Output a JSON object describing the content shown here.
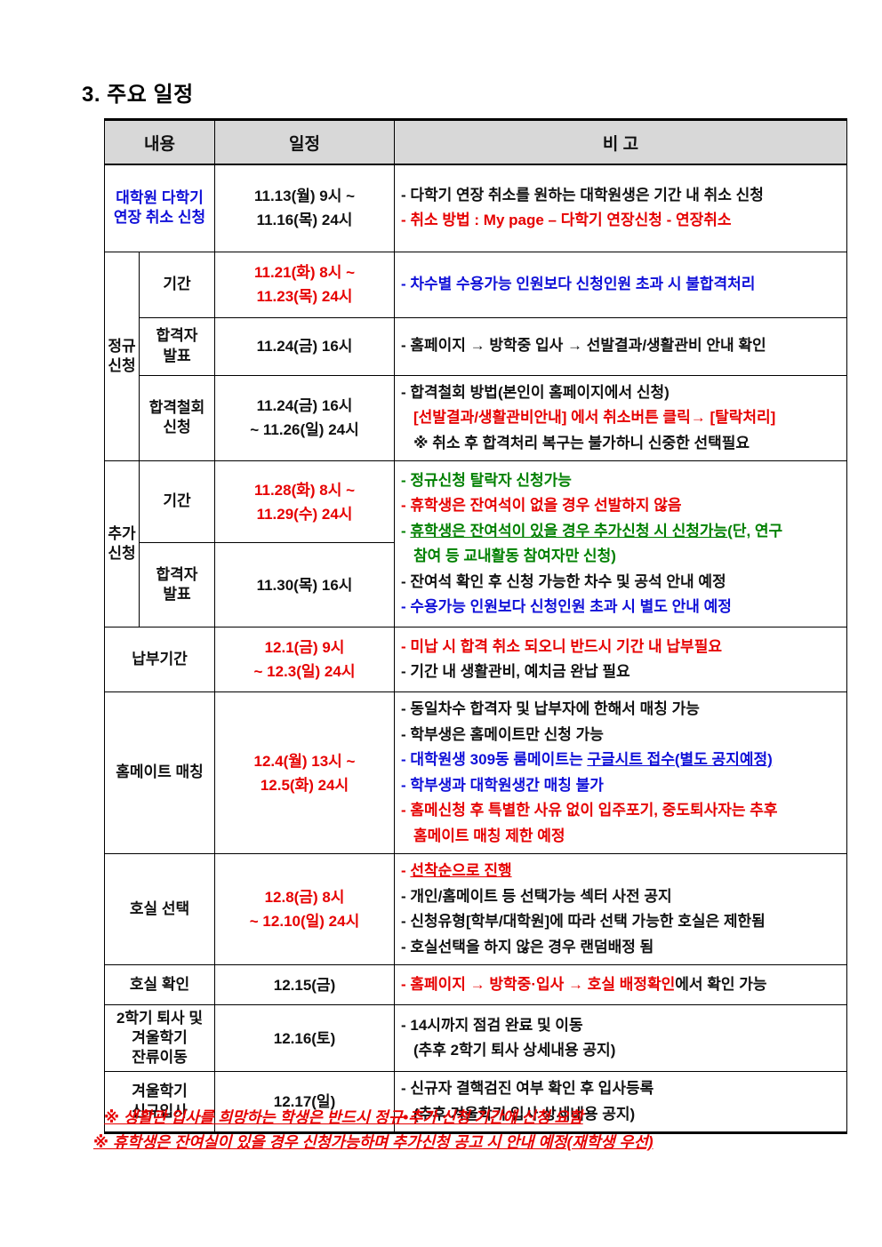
{
  "page": {
    "title": "3. 주요 일정"
  },
  "colors": {
    "k": "#111111",
    "r": "#e60000",
    "b": "#0f0fd8",
    "g": "#008000",
    "header_bg": "#d8d8d8"
  },
  "table": {
    "headers": {
      "content": "내용",
      "schedule": "일정",
      "note": "비 고"
    },
    "rows": [
      {
        "name": "grad-multisemester-cancel",
        "label": "대학원 다학기\n연장 취소 신청",
        "label_color": "b",
        "label_colspan": 2,
        "schedule": {
          "lines": [
            "11.13(월) 9시 ~",
            "11.16(목) 24시"
          ],
          "color": "k"
        },
        "note": {
          "rowspan": 1,
          "lines": [
            {
              "segs": [
                {
                  "t": "- 다학기 연장 취소를 원하는 대학원생은 기간 내 취소 신청",
                  "c": "k"
                }
              ]
            },
            {
              "segs": [
                {
                  "t": "- ",
                  "c": "r"
                },
                {
                  "t": "취소 방법 : My page – 다학기 연장신청 - 연장취소",
                  "c": "r"
                }
              ]
            }
          ]
        }
      },
      {
        "name": "regular-period",
        "group": {
          "label": "정규\n신청",
          "rowspan": 3
        },
        "label": "기간",
        "label_color": "k",
        "label_colspan": 1,
        "schedule": {
          "lines": [
            "11.21(화) 8시 ~",
            "11.23(목) 24시"
          ],
          "color": "r"
        },
        "note": {
          "rowspan": 1,
          "lines": [
            {
              "segs": [
                {
                  "t": "- ",
                  "c": "b"
                },
                {
                  "t": "차수별 수용가능 인원보다 신청인원 초과 시 불합격처리",
                  "c": "b"
                }
              ]
            }
          ]
        }
      },
      {
        "name": "regular-result",
        "label": "합격자\n발표",
        "label_color": "k",
        "label_colspan": 1,
        "schedule": {
          "lines": [
            "11.24(금) 16시"
          ],
          "color": "k"
        },
        "note": {
          "rowspan": 1,
          "lines": [
            {
              "segs": [
                {
                  "t": "- 홈페이지 → 방학중 입사 → 선발결과/생활관비 안내 확인",
                  "c": "k"
                }
              ]
            }
          ]
        }
      },
      {
        "name": "regular-withdraw",
        "label": "합격철회\n신청",
        "label_color": "k",
        "label_colspan": 1,
        "schedule": {
          "lines": [
            "11.24(금) 16시",
            "~ 11.26(일) 24시"
          ],
          "color": "k"
        },
        "note": {
          "rowspan": 1,
          "lines": [
            {
              "segs": [
                {
                  "t": "- 합격철회 방법(본인이 홈페이지에서 신청)",
                  "c": "k"
                }
              ]
            },
            {
              "ind": true,
              "segs": [
                {
                  "t": "[선발결과/생활관비안내] 에서 취소버튼 클릭→ [탈락처리]",
                  "c": "r"
                }
              ]
            },
            {
              "ind": true,
              "segs": [
                {
                  "t": "※ 취소 후 합격처리 복구는 불가하니 신중한 선택필요",
                  "c": "k"
                }
              ]
            }
          ]
        }
      },
      {
        "name": "extra-period",
        "group": {
          "label": "추가\n신청",
          "rowspan": 2
        },
        "label": "기간",
        "label_color": "k",
        "label_colspan": 1,
        "schedule": {
          "lines": [
            "11.28(화) 8시 ~",
            "11.29(수) 24시"
          ],
          "color": "r"
        },
        "note": {
          "rowspan": 2,
          "lines": [
            {
              "segs": [
                {
                  "t": "- ",
                  "c": "g"
                },
                {
                  "t": "정규신청 탈락자 신청가능",
                  "c": "g"
                }
              ]
            },
            {
              "segs": [
                {
                  "t": "- ",
                  "c": "r"
                },
                {
                  "t": "휴학생은 잔여석이 없을 경우 선발하지 않음",
                  "c": "r"
                }
              ]
            },
            {
              "segs": [
                {
                  "t": "- ",
                  "c": "g"
                },
                {
                  "t": "휴학생은 잔여석이 있을 경우 추가신청 시 신청가능",
                  "c": "g",
                  "u": true
                },
                {
                  "t": "(단, 연구",
                  "c": "g"
                }
              ]
            },
            {
              "ind": true,
              "segs": [
                {
                  "t": "참여 등 교내활동 참여자만 신청)",
                  "c": "g"
                }
              ]
            },
            {
              "segs": [
                {
                  "t": "- 잔여석 확인 후 신청 가능한 차수 및 공석 안내 예정",
                  "c": "k"
                }
              ]
            },
            {
              "segs": [
                {
                  "t": "- ",
                  "c": "b"
                },
                {
                  "t": "수용가능 인원보다 신청인원 초과 시 별도 안내 예정",
                  "c": "b"
                }
              ]
            }
          ]
        }
      },
      {
        "name": "extra-result",
        "label": "합격자\n발표",
        "label_color": "k",
        "label_colspan": 1,
        "schedule": {
          "lines": [
            "11.30(목) 16시"
          ],
          "color": "k"
        },
        "note": null
      },
      {
        "name": "payment-period",
        "label": "납부기간",
        "label_color": "k",
        "label_colspan": 2,
        "schedule": {
          "lines": [
            "12.1(금) 9시",
            "~ 12.3(일) 24시"
          ],
          "color": "r"
        },
        "note": {
          "rowspan": 1,
          "lines": [
            {
              "segs": [
                {
                  "t": "- ",
                  "c": "r"
                },
                {
                  "t": "미납 시 합격 취소 되오니 반드시 기간 내 납부필요",
                  "c": "r"
                }
              ]
            },
            {
              "segs": [
                {
                  "t": "- 기간 내 생활관비, 예치금 완납 필요",
                  "c": "k"
                }
              ]
            }
          ]
        }
      },
      {
        "name": "homemate-matching",
        "label": "홈메이트 매칭",
        "label_color": "k",
        "label_colspan": 2,
        "schedule": {
          "lines": [
            "12.4(월) 13시 ~",
            "12.5(화) 24시"
          ],
          "color": "r"
        },
        "note": {
          "rowspan": 1,
          "lines": [
            {
              "segs": [
                {
                  "t": "- 동일차수 합격자 및 납부자에 한해서 매칭 가능",
                  "c": "k"
                }
              ]
            },
            {
              "segs": [
                {
                  "t": "- 학부생은 홈메이트만 신청 가능",
                  "c": "k"
                }
              ]
            },
            {
              "segs": [
                {
                  "t": "- ",
                  "c": "b"
                },
                {
                  "t": "대학원생 309동 룸메이트는 ",
                  "c": "b"
                },
                {
                  "t": "구글시트 접수(별도 공지예정)",
                  "c": "b",
                  "u": true
                }
              ]
            },
            {
              "segs": [
                {
                  "t": "- ",
                  "c": "b"
                },
                {
                  "t": "학부생과 대학원생간 매칭 불가",
                  "c": "b"
                }
              ]
            },
            {
              "segs": [
                {
                  "t": "- ",
                  "c": "r"
                },
                {
                  "t": "홈메신청 후 특별한 사유 없이 입주포기, 중도퇴사자는 추후",
                  "c": "r"
                }
              ]
            },
            {
              "ind": true,
              "segs": [
                {
                  "t": "홈메이트 매칭 제한 예정",
                  "c": "r"
                }
              ]
            }
          ]
        }
      },
      {
        "name": "room-selection",
        "label": "호실 선택",
        "label_color": "k",
        "label_colspan": 2,
        "schedule": {
          "lines": [
            "12.8(금) 8시",
            "~ 12.10(일) 24시"
          ],
          "color": "r"
        },
        "note": {
          "rowspan": 1,
          "lines": [
            {
              "segs": [
                {
                  "t": "- ",
                  "c": "r"
                },
                {
                  "t": "선착순으로 진행",
                  "c": "r",
                  "u": true
                }
              ]
            },
            {
              "segs": [
                {
                  "t": "- 개인/홈메이트 등 선택가능 섹터 사전 공지",
                  "c": "k"
                }
              ]
            },
            {
              "segs": [
                {
                  "t": "- 신청유형[학부/대학원]에 따라 선택 가능한 호실은 제한됨",
                  "c": "k"
                }
              ]
            },
            {
              "segs": [
                {
                  "t": "- 호실선택을 하지 않은 경우 랜덤배정 됨",
                  "c": "k"
                }
              ]
            }
          ]
        }
      },
      {
        "name": "room-confirm",
        "label": "호실 확인",
        "label_color": "k",
        "label_colspan": 2,
        "schedule": {
          "lines": [
            "12.15(금)"
          ],
          "color": "k"
        },
        "note": {
          "rowspan": 1,
          "lines": [
            {
              "segs": [
                {
                  "t": "- ",
                  "c": "r"
                },
                {
                  "t": "홈페이지 → 방학중·입사 → 호실 배정확인",
                  "c": "r"
                },
                {
                  "t": "에서 확인 가능",
                  "c": "k"
                }
              ]
            }
          ]
        }
      },
      {
        "name": "second-semester-moveout",
        "label": "2학기 퇴사 및\n겨울학기\n잔류이동",
        "label_color": "k",
        "label_colspan": 2,
        "schedule": {
          "lines": [
            "12.16(토)"
          ],
          "color": "k"
        },
        "note": {
          "rowspan": 1,
          "lines": [
            {
              "segs": [
                {
                  "t": "- 14시까지 점검 완료 및 이동",
                  "c": "k"
                }
              ]
            },
            {
              "ind": true,
              "segs": [
                {
                  "t": "(추후 2학기 퇴사 상세내용 공지)",
                  "c": "k"
                }
              ]
            }
          ]
        }
      },
      {
        "name": "winter-new-movein",
        "label": "겨울학기\n신규입사",
        "label_color": "k",
        "label_colspan": 2,
        "schedule": {
          "lines": [
            "12.17(일)"
          ],
          "color": "k"
        },
        "note": {
          "rowspan": 1,
          "lines": [
            {
              "segs": [
                {
                  "t": "- 신규자 결핵검진 여부 확인 후 입사등록",
                  "c": "k"
                }
              ]
            },
            {
              "ind": true,
              "segs": [
                {
                  "t": "(추후 겨울학기 입사 상세내용 공지)",
                  "c": "k"
                }
              ]
            }
          ]
        }
      }
    ]
  },
  "footnotes": [
    "※ 생활관 입사를 희망하는 학생은 반드시 정규•추가 신청 기간에 신청 요함",
    "※ 휴학생은 잔여실이 있을 경우 신청가능하며 추가신청 공고 시 안내 예정(재학생 우선)"
  ]
}
